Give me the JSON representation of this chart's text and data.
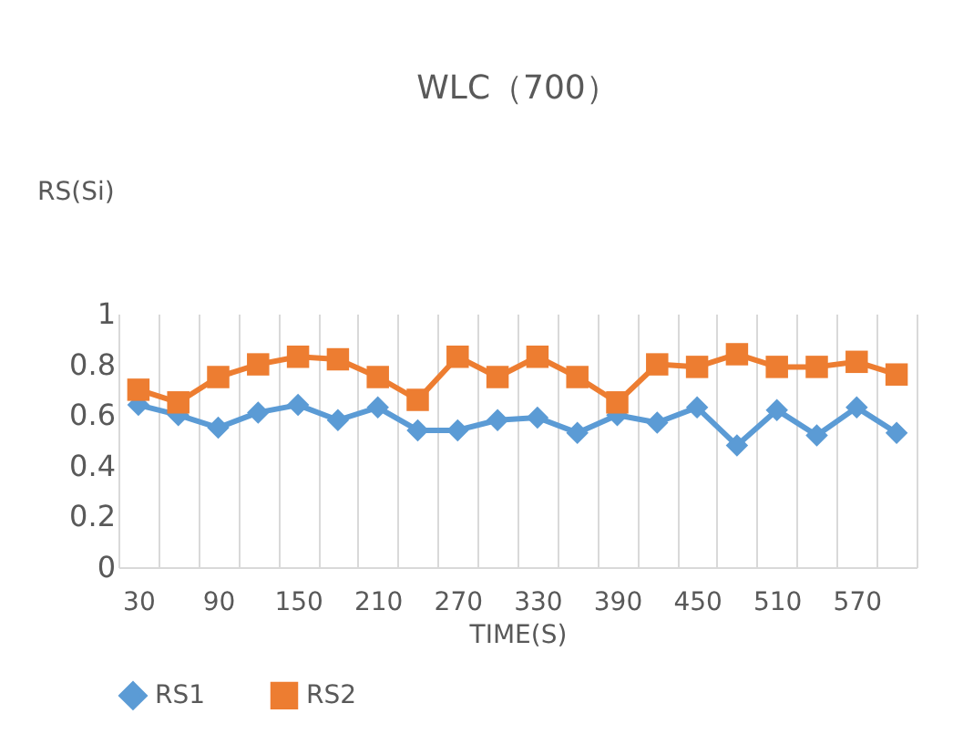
{
  "chart_data": {
    "type": "line",
    "title": "WLC（700）",
    "xlabel": "TIME(S)",
    "ylabel": "RS(Si)",
    "categories": [
      "30",
      null,
      "90",
      null,
      "150",
      null,
      "210",
      null,
      "270",
      null,
      "330",
      null,
      "390",
      null,
      "450",
      null,
      "510",
      null,
      "570",
      null
    ],
    "series": [
      {
        "name": "RS1",
        "color": "#5b9bd5",
        "marker": "diamond",
        "values": [
          0.64,
          0.6,
          0.55,
          0.61,
          0.64,
          0.58,
          0.63,
          0.54,
          0.54,
          0.58,
          0.59,
          0.53,
          0.6,
          0.57,
          0.63,
          0.48,
          0.62,
          0.52,
          0.63,
          0.53
        ]
      },
      {
        "name": "RS2",
        "color": "#ed7d31",
        "marker": "square",
        "values": [
          0.7,
          0.65,
          0.75,
          0.8,
          0.83,
          0.82,
          0.75,
          0.66,
          0.83,
          0.75,
          0.83,
          0.75,
          0.65,
          0.8,
          0.79,
          0.84,
          0.79,
          0.79,
          0.81,
          0.76
        ]
      }
    ],
    "ylim": [
      0,
      1
    ],
    "yticks": [
      0,
      0.2,
      0.4,
      0.6,
      0.8,
      1
    ],
    "grid": "x",
    "legend": "bottom"
  }
}
